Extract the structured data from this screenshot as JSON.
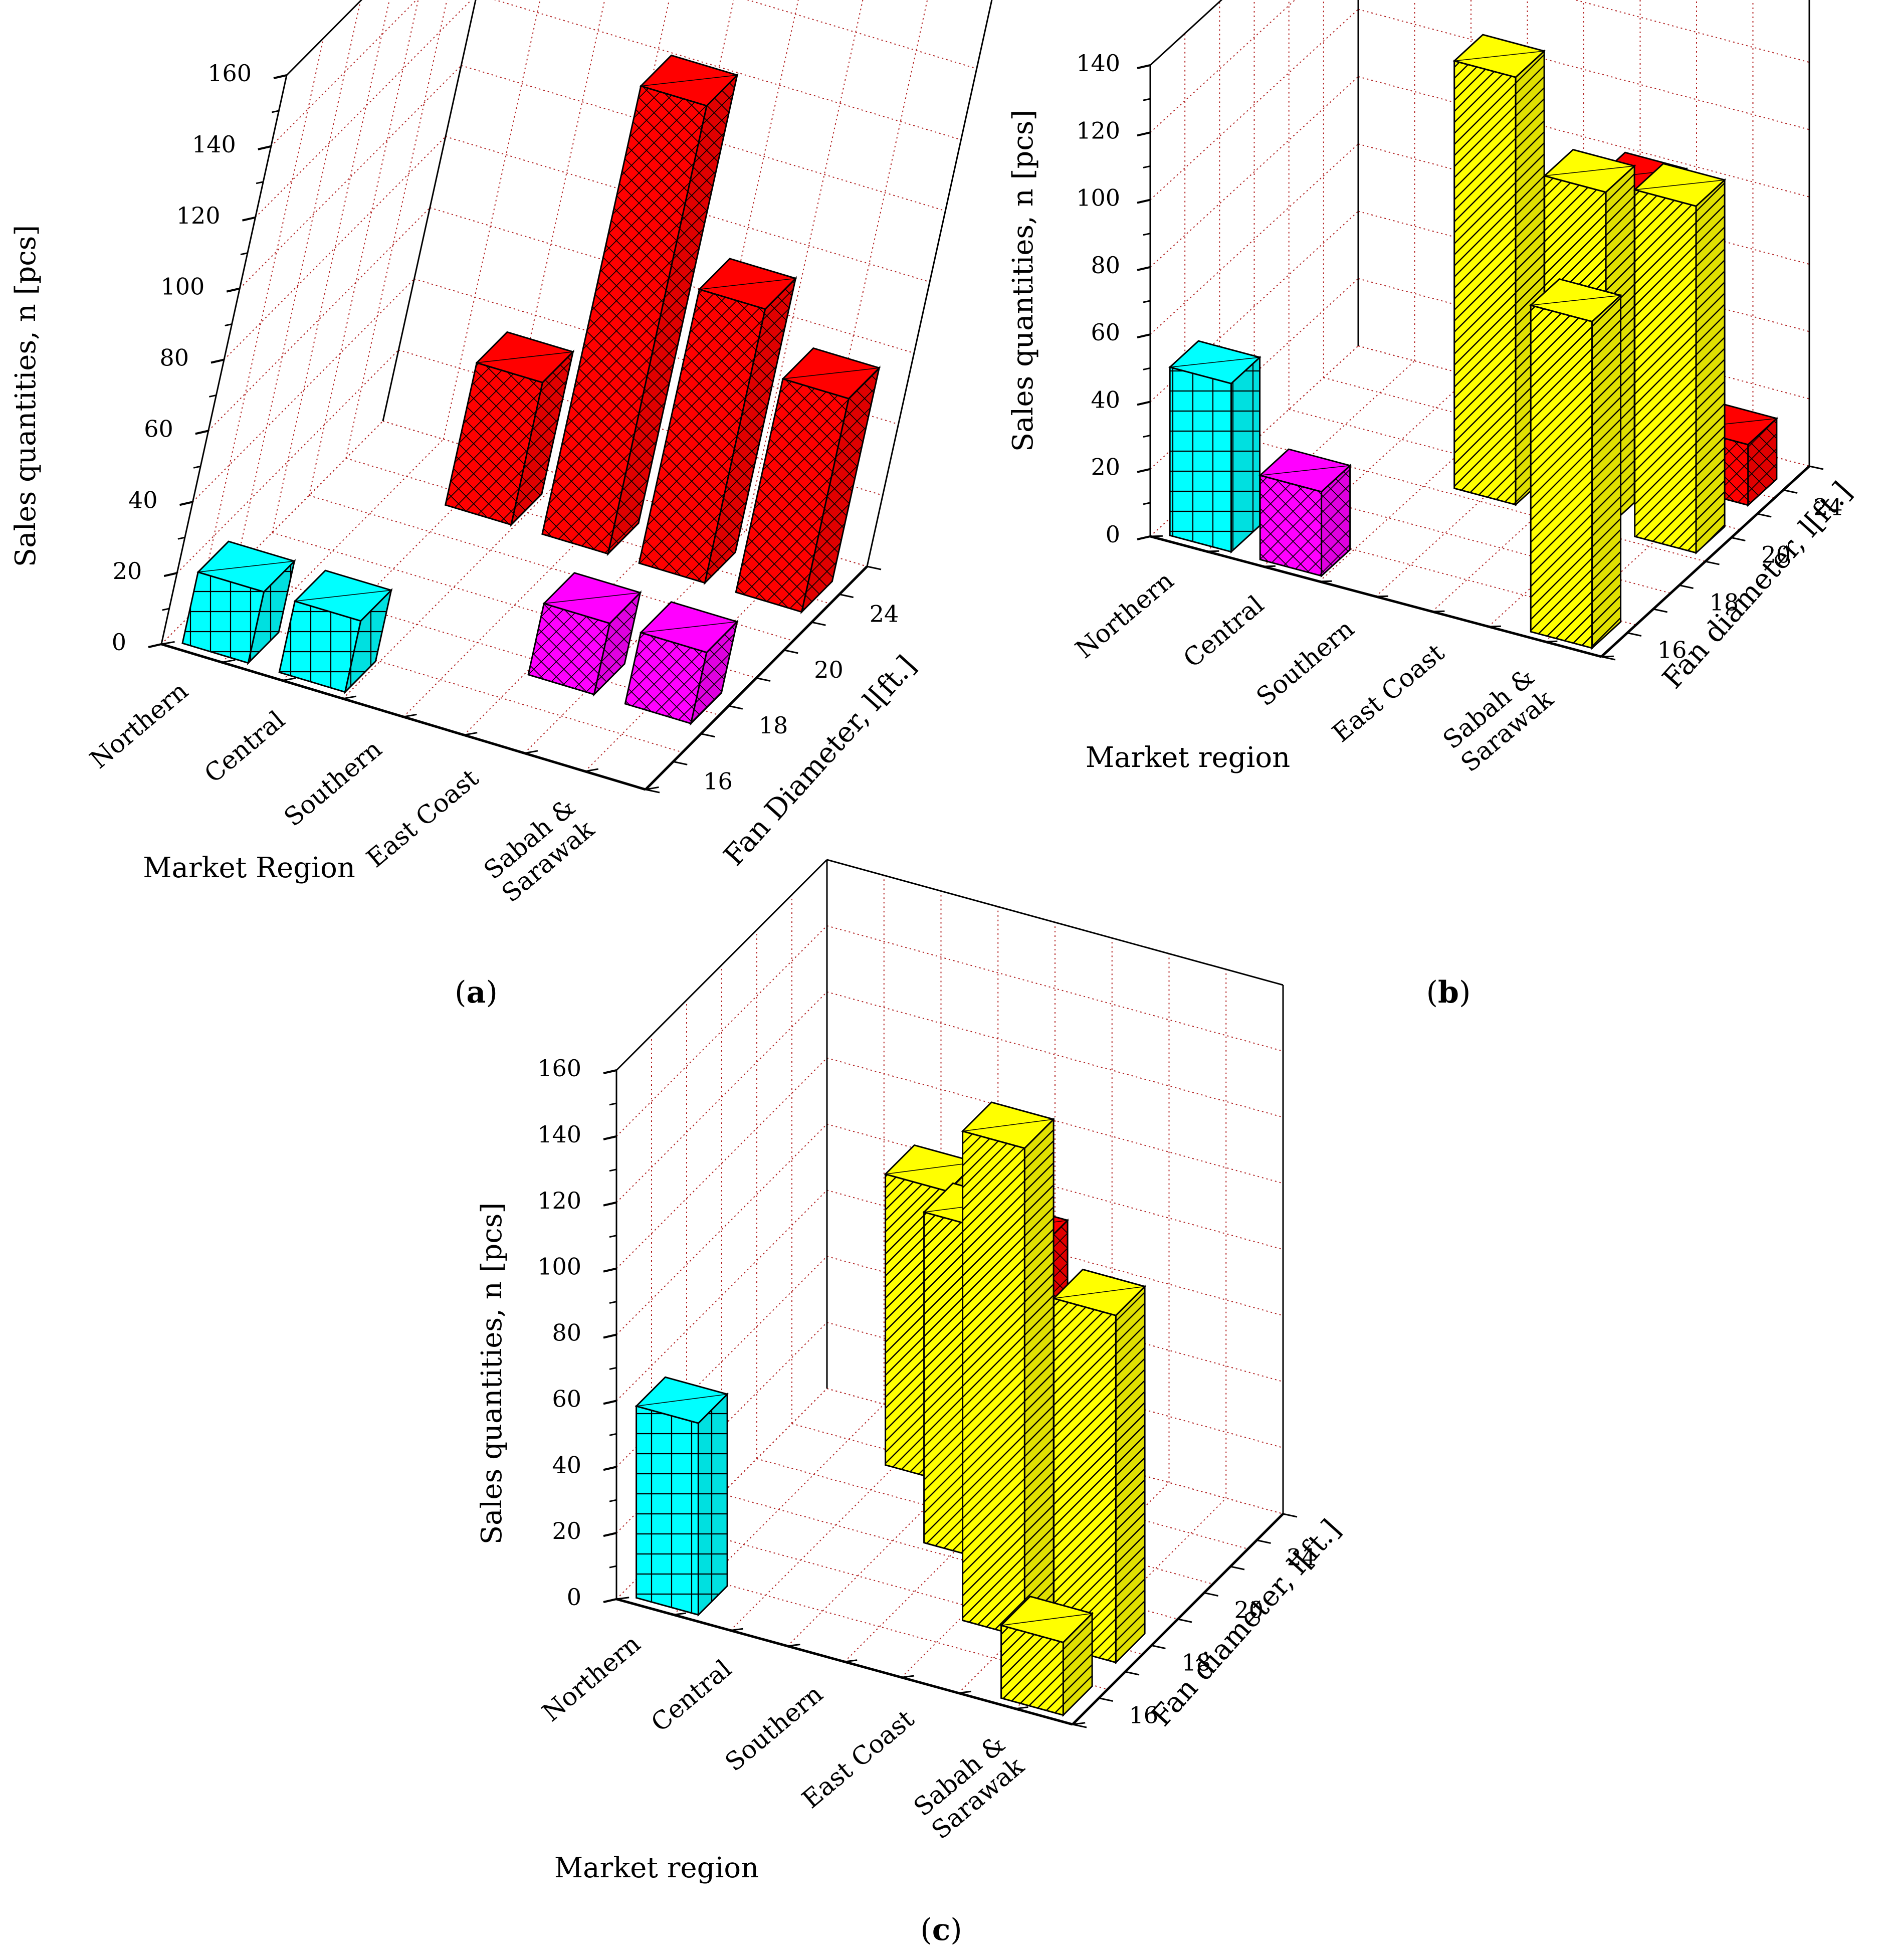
{
  "figure": {
    "labels": {
      "a": "a",
      "b": "b",
      "c": "c"
    }
  },
  "colors": {
    "cyan": "#00ffff",
    "magenta": "#ff00ff",
    "red": "#ff0000",
    "yellow": "#ffff00",
    "grid": "#b22222"
  },
  "chart_data": [
    {
      "id": "a",
      "type": "bar3d",
      "ylabel": "Sales quantities, n [pcs]",
      "xlabel": "Market Region",
      "zlabel": "Fan Diameter, l[ft.]",
      "ylim": [
        0,
        160
      ],
      "yticks": [
        "0",
        "20",
        "40",
        "60",
        "80",
        "100",
        "120",
        "140",
        "160"
      ],
      "categories": [
        "Northern",
        "Central",
        "Southern",
        "East Coast",
        "Sabah & Sarawak"
      ],
      "depth_ticks": [
        "16",
        "18",
        "20",
        "24"
      ],
      "bars": [
        {
          "region": "Northern",
          "diameter": "16",
          "value": 20,
          "color": "cyan"
        },
        {
          "region": "Central",
          "diameter": "16",
          "value": 20,
          "color": "cyan"
        },
        {
          "region": "East Coast",
          "diameter": "18",
          "value": 20,
          "color": "magenta"
        },
        {
          "region": "Sabah & Sarawak",
          "diameter": "18",
          "value": 20,
          "color": "magenta"
        },
        {
          "region": "Central",
          "diameter": "24",
          "value": 40,
          "color": "red"
        },
        {
          "region": "Southern",
          "diameter": "24",
          "value": 126,
          "color": "red"
        },
        {
          "region": "East Coast",
          "diameter": "24",
          "value": 77,
          "color": "red"
        },
        {
          "region": "Sabah & Sarawak",
          "diameter": "24",
          "value": 60,
          "color": "red"
        }
      ]
    },
    {
      "id": "b",
      "type": "bar3d",
      "ylabel": "Sales quantities, n [pcs]",
      "xlabel": "Market region",
      "zlabel": "Fan diameter, l[ft.]",
      "ylim": [
        0,
        140
      ],
      "yticks": [
        "0",
        "20",
        "40",
        "60",
        "80",
        "100",
        "120",
        "140"
      ],
      "categories": [
        "Northern",
        "Central",
        "Southern",
        "East Coast",
        "Sabah & Sarawak"
      ],
      "depth_ticks": [
        "16",
        "18",
        "20",
        "24"
      ],
      "bars": [
        {
          "region": "Northern",
          "diameter": "16",
          "value": 50,
          "color": "cyan"
        },
        {
          "region": "Central",
          "diameter": "16",
          "value": 25,
          "color": "magenta"
        },
        {
          "region": "Southern",
          "diameter": "24",
          "value": 52,
          "color": "red"
        },
        {
          "region": "East Coast",
          "diameter": "24",
          "value": 85,
          "color": "red"
        },
        {
          "region": "Sabah & Sarawak",
          "diameter": "24",
          "value": 18,
          "color": "red"
        },
        {
          "region": "Southern",
          "diameter": "20",
          "value": 127,
          "color": "yellow"
        },
        {
          "region": "East Coast",
          "diameter": "20",
          "value": 100,
          "color": "yellow"
        },
        {
          "region": "Sabah & Sarawak",
          "diameter": "20",
          "value": 103,
          "color": "yellow"
        },
        {
          "region": "Sabah & Sarawak",
          "diameter": "16",
          "value": 97,
          "color": "yellow"
        }
      ]
    },
    {
      "id": "c",
      "type": "bar3d",
      "ylabel": "Sales quantities, n [pcs]",
      "xlabel": "Market region",
      "zlabel": "Fan diameter, l[ft.]",
      "ylim": [
        0,
        160
      ],
      "yticks": [
        "0",
        "20",
        "40",
        "60",
        "80",
        "100",
        "120",
        "140",
        "160"
      ],
      "categories": [
        "Northern",
        "Central",
        "Southern",
        "East Coast",
        "Sabah & Sarawak"
      ],
      "depth_ticks": [
        "16",
        "18",
        "20",
        "24"
      ],
      "bars": [
        {
          "region": "Northern",
          "diameter": "16",
          "value": 58,
          "color": "cyan"
        },
        {
          "region": "Southern",
          "diameter": "24",
          "value": 78,
          "color": "red"
        },
        {
          "region": "Central",
          "diameter": "24",
          "value": 88,
          "color": "yellow"
        },
        {
          "region": "Southern",
          "diameter": "20",
          "value": 100,
          "color": "yellow"
        },
        {
          "region": "East Coast",
          "diameter": "18",
          "value": 148,
          "color": "yellow"
        },
        {
          "region": "Sabah & Sarawak",
          "diameter": "18",
          "value": 105,
          "color": "yellow"
        },
        {
          "region": "Sabah & Sarawak",
          "diameter": "16",
          "value": 22,
          "color": "yellow"
        }
      ]
    }
  ]
}
